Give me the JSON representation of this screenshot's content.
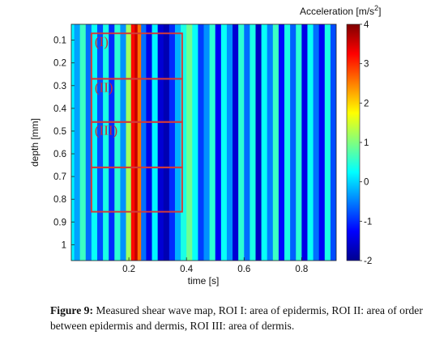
{
  "chart_data": {
    "type": "heatmap",
    "title": "",
    "xlabel": "time [s]",
    "ylabel": "depth [mm]",
    "xlim": [
      0,
      0.92
    ],
    "ylim": [
      0.03,
      1.07
    ],
    "x_ticks": [
      "0.2",
      "0.4",
      "0.6",
      "0.8"
    ],
    "x_tick_values": [
      0.2,
      0.4,
      0.6,
      0.8
    ],
    "y_ticks": [
      "0.1",
      "0.2",
      "0.3",
      "0.4",
      "0.5",
      "0.6",
      "0.7",
      "0.8",
      "0.9",
      "1"
    ],
    "y_tick_values": [
      0.1,
      0.2,
      0.3,
      0.4,
      0.5,
      0.6,
      0.7,
      0.8,
      0.9,
      1.0
    ],
    "colorbar": {
      "label_prefix": "Acceleration [m/s",
      "label_sup": "2",
      "label_suffix": "]",
      "min": -2,
      "max": 4,
      "ticks": [
        "4",
        "3",
        "2",
        "1",
        "0",
        "-1",
        "-2"
      ],
      "tick_values": [
        4,
        3,
        2,
        1,
        0,
        -1,
        -2
      ]
    },
    "column_profile": {
      "description_time_s": [
        0.0,
        0.02,
        0.04,
        0.06,
        0.08,
        0.1,
        0.12,
        0.14,
        0.16,
        0.18,
        0.2,
        0.215,
        0.225,
        0.235,
        0.25,
        0.27,
        0.29,
        0.31,
        0.33,
        0.35,
        0.37,
        0.39,
        0.41,
        0.43,
        0.45,
        0.47,
        0.49,
        0.51,
        0.53,
        0.55,
        0.57,
        0.59,
        0.61,
        0.63,
        0.65,
        0.67,
        0.69,
        0.71,
        0.73,
        0.75,
        0.77,
        0.79,
        0.81,
        0.83,
        0.85,
        0.87,
        0.89,
        0.91
      ],
      "acceleration": [
        0.2,
        -0.3,
        0.6,
        -0.6,
        0.3,
        -0.8,
        0.4,
        -1.0,
        0.5,
        -0.4,
        1.2,
        3.2,
        3.6,
        2.6,
        -0.6,
        -1.4,
        0.2,
        -1.5,
        -1.7,
        -1.0,
        -0.2,
        0.4,
        0.9,
        0.3,
        -0.9,
        -0.4,
        0.5,
        -1.3,
        0.3,
        -0.4,
        -1.5,
        0.5,
        -0.6,
        0.4,
        -1.6,
        0.3,
        -0.5,
        0.6,
        -1.2,
        0.4,
        -0.7,
        0.5,
        -1.4,
        0.3,
        -0.6,
        -1.3,
        0.4,
        -0.8
      ]
    },
    "rois": [
      {
        "label": "(I)",
        "t_start": 0.07,
        "t_end": 0.385,
        "depth_start": 0.07,
        "depth_end": 0.27
      },
      {
        "label": "(II)",
        "t_start": 0.07,
        "t_end": 0.385,
        "depth_start": 0.27,
        "depth_end": 0.46
      },
      {
        "label": "(III)",
        "t_start": 0.07,
        "t_end": 0.385,
        "depth_start": 0.46,
        "depth_end": 0.66
      },
      {
        "label": "",
        "t_start": 0.07,
        "t_end": 0.385,
        "depth_start": 0.66,
        "depth_end": 0.855
      }
    ],
    "roi_color": "#d23a3a"
  },
  "caption": {
    "label": "Figure 9:",
    "text": " Measured shear wave map, ROI I: area of epidermis, ROI II: area of order between epidermis and dermis, ROI III: area of dermis."
  }
}
